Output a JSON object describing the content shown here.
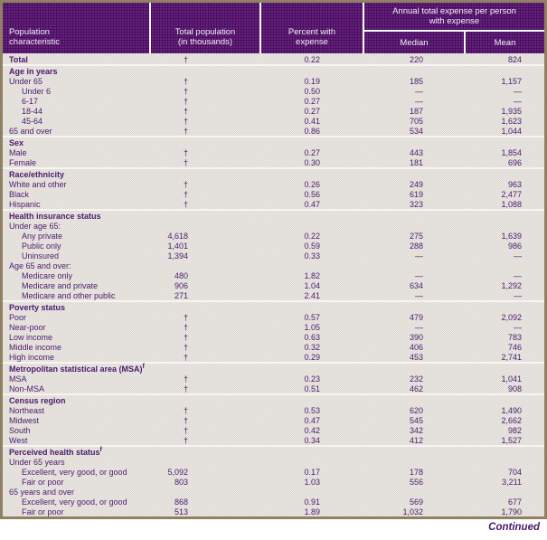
{
  "header": {
    "col1": [
      "Population",
      "characteristic"
    ],
    "col2": [
      "Total population",
      "(in thousands)"
    ],
    "col3": [
      "Percent with",
      "expense"
    ],
    "span": [
      "Annual total expense per person",
      "with expense"
    ],
    "median": "Median",
    "mean": "Mean"
  },
  "table": {
    "sections": [
      {
        "rows": [
          {
            "label": "Total",
            "bold": true,
            "values": [
              "†",
              "0.22",
              "220",
              "824"
            ]
          }
        ]
      },
      {
        "header": "Age in years",
        "rows": [
          {
            "label": "Under 65",
            "values": [
              "†",
              "0.19",
              "185",
              "1,157"
            ]
          },
          {
            "label": "Under 6",
            "indent": 1,
            "values": [
              "†",
              "0.50",
              "—",
              "—"
            ]
          },
          {
            "label": "6-17",
            "indent": 1,
            "values": [
              "†",
              "0.27",
              "—",
              "—"
            ]
          },
          {
            "label": "18-44",
            "indent": 1,
            "values": [
              "†",
              "0.27",
              "187",
              "1,935"
            ]
          },
          {
            "label": "45-64",
            "indent": 1,
            "values": [
              "†",
              "0.41",
              "705",
              "1,623"
            ]
          },
          {
            "label": "65 and over",
            "values": [
              "†",
              "0.86",
              "534",
              "1,044"
            ]
          }
        ]
      },
      {
        "header": "Sex",
        "rows": [
          {
            "label": "Male",
            "values": [
              "†",
              "0.27",
              "443",
              "1,854"
            ]
          },
          {
            "label": "Female",
            "values": [
              "†",
              "0.30",
              "181",
              "696"
            ]
          }
        ]
      },
      {
        "header": "Race/ethnicity",
        "rows": [
          {
            "label": "White and other",
            "values": [
              "†",
              "0.26",
              "249",
              "963"
            ]
          },
          {
            "label": "Black",
            "values": [
              "†",
              "0.56",
              "619",
              "2,477"
            ]
          },
          {
            "label": "Hispanic",
            "values": [
              "†",
              "0.47",
              "323",
              "1,088"
            ]
          }
        ]
      },
      {
        "header": "Health insurance status",
        "rows": [
          {
            "label": "Under age 65:",
            "subheader": true
          },
          {
            "label": "Any private",
            "indent": 1,
            "values": [
              "4,618",
              "0.22",
              "275",
              "1,639"
            ]
          },
          {
            "label": "Public only",
            "indent": 1,
            "values": [
              "1,401",
              "0.59",
              "288",
              "986"
            ]
          },
          {
            "label": "Uninsured",
            "indent": 1,
            "values": [
              "1,394",
              "0.33",
              "—",
              "—"
            ]
          },
          {
            "label": "Age 65 and over:",
            "subheader": true
          },
          {
            "label": "Medicare only",
            "indent": 1,
            "values": [
              "480",
              "1.82",
              "—",
              "—"
            ]
          },
          {
            "label": "Medicare and private",
            "indent": 1,
            "values": [
              "906",
              "1.04",
              "634",
              "1,292"
            ]
          },
          {
            "label": "Medicare and other public",
            "indent": 1,
            "values": [
              "271",
              "2.41",
              "—",
              "—"
            ]
          }
        ]
      },
      {
        "header": "Poverty status",
        "rows": [
          {
            "label": "Poor",
            "values": [
              "†",
              "0.57",
              "479",
              "2,092"
            ]
          },
          {
            "label": "Near-poor",
            "values": [
              "†",
              "1.05",
              "—",
              "—"
            ]
          },
          {
            "label": "Low income",
            "values": [
              "†",
              "0.63",
              "390",
              "783"
            ]
          },
          {
            "label": "Middle income",
            "values": [
              "†",
              "0.32",
              "406",
              "746"
            ]
          },
          {
            "label": "High income",
            "values": [
              "†",
              "0.29",
              "453",
              "2,741"
            ]
          }
        ]
      },
      {
        "header": "Metropolitan statistical area (MSA)",
        "header_sup": "f",
        "rows": [
          {
            "label": "MSA",
            "values": [
              "†",
              "0.23",
              "232",
              "1,041"
            ]
          },
          {
            "label": "Non-MSA",
            "values": [
              "†",
              "0.51",
              "462",
              "908"
            ]
          }
        ]
      },
      {
        "header": "Census region",
        "rows": [
          {
            "label": "Northeast",
            "values": [
              "†",
              "0.53",
              "620",
              "1,490"
            ]
          },
          {
            "label": "Midwest",
            "values": [
              "†",
              "0.47",
              "545",
              "2,662"
            ]
          },
          {
            "label": "South",
            "values": [
              "†",
              "0.42",
              "342",
              "982"
            ]
          },
          {
            "label": "West",
            "values": [
              "†",
              "0.34",
              "412",
              "1,527"
            ]
          }
        ]
      },
      {
        "header": "Perceived health status",
        "header_sup": "f",
        "rows": [
          {
            "label": "Under 65 years",
            "subheader": true
          },
          {
            "label": "Excellent, very good, or good",
            "indent": 1,
            "values": [
              "5,092",
              "0.17",
              "178",
              "704"
            ]
          },
          {
            "label": "Fair or poor",
            "indent": 1,
            "values": [
              "803",
              "1.03",
              "556",
              "3,211"
            ]
          },
          {
            "label": "65 years and over",
            "subheader": true
          },
          {
            "label": "Excellent, very good, or good",
            "indent": 1,
            "values": [
              "868",
              "0.91",
              "569",
              "677"
            ]
          },
          {
            "label": "Fair or poor",
            "indent": 1,
            "values": [
              "513",
              "1.89",
              "1,032",
              "1,790"
            ]
          }
        ]
      }
    ]
  },
  "footer": {
    "continued": "Continued"
  },
  "colors": {
    "header_purple": "#441061",
    "header_dot": "#8a2e8e",
    "text_purple": "#4b1a6e",
    "border_tan": "#8f8162",
    "body_light": "#dfdbd5"
  }
}
